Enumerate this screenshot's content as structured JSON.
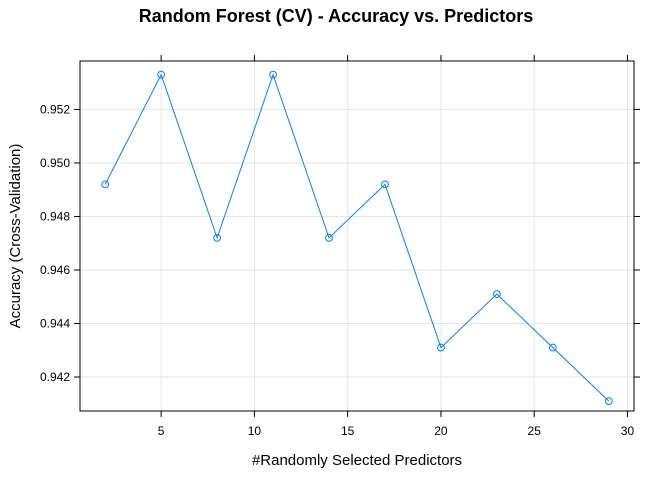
{
  "chart_data": {
    "type": "line",
    "title": "Random Forest (CV) - Accuracy vs. Predictors",
    "xlabel": "#Randomly Selected Predictors",
    "ylabel": "Accuracy (Cross-Validation)",
    "xlim": [
      0.65,
      30.35
    ],
    "ylim": [
      0.94073,
      0.95381
    ],
    "xticks": [
      5,
      10,
      15,
      20,
      25,
      30
    ],
    "yticks": [
      0.942,
      0.944,
      0.946,
      0.948,
      0.95,
      0.952
    ],
    "xtick_labels": [
      "5",
      "10",
      "15",
      "20",
      "25",
      "30"
    ],
    "ytick_labels": [
      "0.942",
      "0.944",
      "0.946",
      "0.948",
      "0.950",
      "0.952"
    ],
    "grid": true,
    "series": [
      {
        "x": [
          2,
          5,
          8,
          11,
          14,
          17,
          20,
          23,
          26,
          29
        ],
        "y": [
          0.9492,
          0.9533,
          0.9472,
          0.9533,
          0.9472,
          0.9492,
          0.9431,
          0.9451,
          0.9431,
          0.9411
        ],
        "color": "#0080ff",
        "marker": "circle"
      }
    ]
  },
  "colors": {
    "series": "#0080ff",
    "grid": "#e6e6e6",
    "axis": "#000000",
    "background": "#ffffff"
  }
}
